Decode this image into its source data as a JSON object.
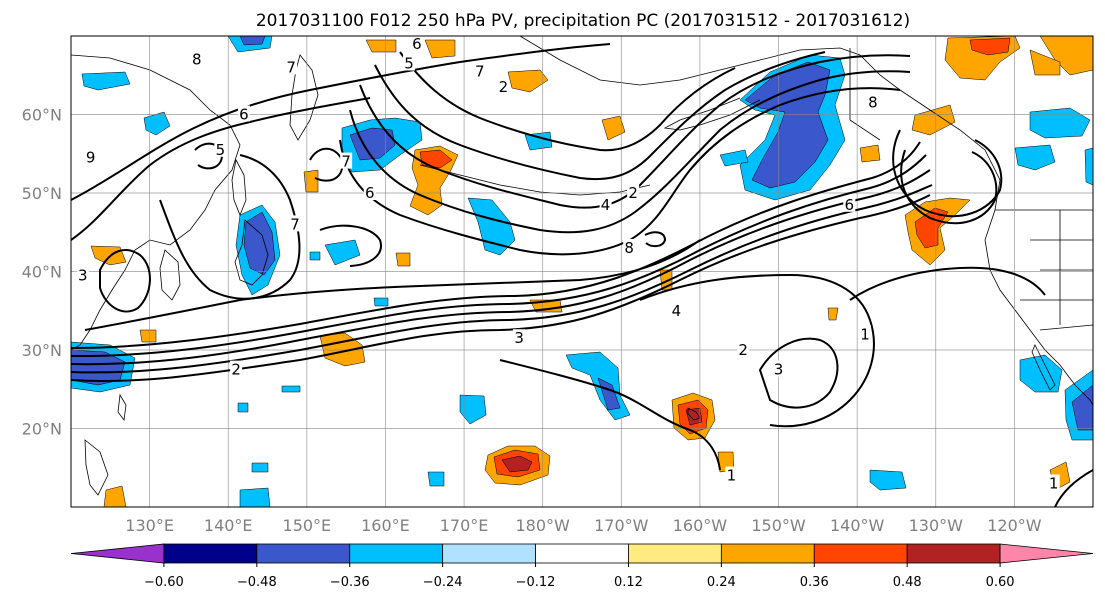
{
  "title": "2017031100 F012 250 hPa PV, precipitation PC (2017031512 - 2017031612)",
  "map": {
    "lon_range": [
      120,
      250
    ],
    "lat_range": [
      10,
      70
    ],
    "lon_ticks": [
      {
        "lon": 130,
        "label": "130°E"
      },
      {
        "lon": 140,
        "label": "140°E"
      },
      {
        "lon": 150,
        "label": "150°E"
      },
      {
        "lon": 160,
        "label": "160°E"
      },
      {
        "lon": 170,
        "label": "170°E"
      },
      {
        "lon": 180,
        "label": "180°W"
      },
      {
        "lon": 190,
        "label": "170°W"
      },
      {
        "lon": 200,
        "label": "160°W"
      },
      {
        "lon": 210,
        "label": "150°W"
      },
      {
        "lon": 220,
        "label": "140°W"
      },
      {
        "lon": 230,
        "label": "130°W"
      },
      {
        "lon": 240,
        "label": "120°W"
      }
    ],
    "lat_ticks": [
      {
        "lat": 20,
        "label": "20°N"
      },
      {
        "lat": 30,
        "label": "30°N"
      },
      {
        "lat": 40,
        "label": "40°N"
      },
      {
        "lat": 50,
        "label": "50°N"
      },
      {
        "lat": 60,
        "label": "60°N"
      }
    ],
    "gridlines": true,
    "pv_contour_labels": [
      {
        "lon": 136,
        "lat": 67,
        "text": "8"
      },
      {
        "lon": 148,
        "lat": 66,
        "text": "7"
      },
      {
        "lon": 142,
        "lat": 60,
        "text": "6"
      },
      {
        "lon": 139,
        "lat": 55.5,
        "text": "5"
      },
      {
        "lon": 122.5,
        "lat": 54.5,
        "text": "9"
      },
      {
        "lon": 155,
        "lat": 54,
        "text": "7"
      },
      {
        "lon": 158,
        "lat": 50,
        "text": "6"
      },
      {
        "lon": 164,
        "lat": 69,
        "text": "6"
      },
      {
        "lon": 163,
        "lat": 66.5,
        "text": "5"
      },
      {
        "lon": 172,
        "lat": 65.5,
        "text": "7"
      },
      {
        "lon": 175,
        "lat": 63.5,
        "text": "2"
      },
      {
        "lon": 188,
        "lat": 48.5,
        "text": "4"
      },
      {
        "lon": 191.5,
        "lat": 50,
        "text": "2"
      },
      {
        "lon": 191,
        "lat": 43,
        "text": "8"
      },
      {
        "lon": 197,
        "lat": 35,
        "text": "4"
      },
      {
        "lon": 177,
        "lat": 31.5,
        "text": "3"
      },
      {
        "lon": 141,
        "lat": 27.5,
        "text": "2"
      },
      {
        "lon": 148.5,
        "lat": 46,
        "text": "7"
      },
      {
        "lon": 205.5,
        "lat": 30,
        "text": "2"
      },
      {
        "lon": 210,
        "lat": 27.5,
        "text": "3"
      },
      {
        "lon": 221,
        "lat": 32,
        "text": "1"
      },
      {
        "lon": 219,
        "lat": 48.5,
        "text": "6"
      },
      {
        "lon": 222,
        "lat": 61.5,
        "text": "8"
      },
      {
        "lon": 204,
        "lat": 14,
        "text": "1"
      },
      {
        "lon": 245,
        "lat": 13,
        "text": "1"
      },
      {
        "lon": 121.5,
        "lat": 39.5,
        "text": "3"
      }
    ]
  },
  "colorbar": {
    "colors": [
      "#9932cc",
      "#00008b",
      "#3a57cb",
      "#00bfff",
      "#b0e2ff",
      "#ffffff",
      "#ffeb80",
      "#ffa500",
      "#ff4500",
      "#b22222",
      "#ff85a9"
    ],
    "tick_labels": [
      "−0.60",
      "−0.48",
      "−0.36",
      "−0.24",
      "−0.12",
      "0.12",
      "0.24",
      "0.36",
      "0.48",
      "0.60"
    ],
    "extend": "both"
  }
}
